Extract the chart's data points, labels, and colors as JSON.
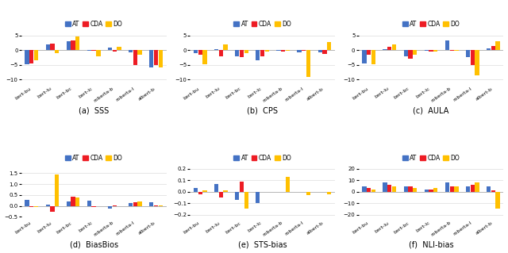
{
  "categories": [
    "bert-bu",
    "bert-lu",
    "bert-bc",
    "bert-lc",
    "roberta-b",
    "roberta-l",
    "albert-b"
  ],
  "colors": {
    "AT": "#4472C4",
    "CDA": "#ED1C24",
    "DO": "#FFC000"
  },
  "methods": [
    "AT",
    "CDA",
    "DO"
  ],
  "SSS": {
    "AT": [
      -4.8,
      2.0,
      3.0,
      -0.2,
      0.9,
      -0.8,
      -5.8
    ],
    "CDA": [
      -4.5,
      2.2,
      3.4,
      -0.1,
      -0.5,
      -5.0,
      -5.0
    ],
    "DO": [
      -3.5,
      -1.0,
      4.5,
      -2.0,
      1.2,
      -1.5,
      -5.8
    ]
  },
  "CPS": {
    "AT": [
      -1.0,
      0.4,
      -2.0,
      -3.5,
      -0.2,
      -0.8,
      -0.8
    ],
    "CDA": [
      -1.5,
      -2.0,
      -2.5,
      -2.0,
      -0.4,
      -0.3,
      -1.2
    ],
    "DO": [
      -4.8,
      1.8,
      -1.0,
      -0.5,
      -0.3,
      -9.0,
      2.8
    ]
  },
  "AULA": {
    "AT": [
      -4.5,
      0.2,
      -2.0,
      -0.3,
      3.2,
      -2.5,
      0.5
    ],
    "CDA": [
      -1.5,
      1.2,
      -3.0,
      -0.5,
      -0.3,
      -5.0,
      1.5
    ],
    "DO": [
      -4.8,
      1.8,
      -1.5,
      -0.5,
      -0.2,
      -8.5,
      3.0
    ]
  },
  "BiasBios": {
    "AT": [
      0.28,
      0.05,
      0.22,
      0.25,
      -0.12,
      0.12,
      0.16
    ],
    "CDA": [
      -0.06,
      -0.28,
      0.42,
      -0.05,
      0.03,
      0.16,
      0.04
    ],
    "DO": [
      -0.05,
      1.45,
      0.38,
      -0.03,
      -0.02,
      0.22,
      0.02
    ]
  },
  "STS-bias": {
    "AT": [
      0.03,
      0.07,
      -0.07,
      -0.1,
      0.0,
      0.0,
      0.0
    ],
    "CDA": [
      -0.02,
      -0.05,
      0.09,
      0.0,
      0.0,
      0.0,
      0.0
    ],
    "DO": [
      0.01,
      0.01,
      -0.15,
      0.0,
      0.13,
      -0.03,
      -0.02
    ]
  },
  "NLI-bias": {
    "AT": [
      5.0,
      8.0,
      5.0,
      2.0,
      8.0,
      5.0,
      5.0
    ],
    "CDA": [
      3.0,
      6.0,
      5.0,
      2.0,
      5.0,
      6.0,
      1.5
    ],
    "DO": [
      2.0,
      5.0,
      3.0,
      3.0,
      5.0,
      8.0,
      -15.0
    ]
  },
  "ylims": {
    "SSS": [
      -11,
      6
    ],
    "CPS": [
      -11,
      6
    ],
    "AULA": [
      -11,
      6
    ],
    "BiasBios": [
      -0.5,
      1.8
    ],
    "STS-bias": [
      -0.22,
      0.22
    ],
    "NLI-bias": [
      -22,
      22
    ]
  },
  "yticks": {
    "SSS": [
      -10,
      -5,
      0,
      5
    ],
    "CPS": [
      -10,
      -5,
      0,
      5
    ],
    "AULA": [
      -10,
      -5,
      0,
      5
    ],
    "BiasBios": [
      -0.5,
      0.0,
      0.5,
      1.0,
      1.5
    ],
    "STS-bias": [
      -0.2,
      -0.1,
      0.0,
      0.1,
      0.2
    ],
    "NLI-bias": [
      -20,
      -10,
      0,
      10,
      20
    ]
  },
  "subtitles": [
    "(a)  SSS",
    "(b)  CPS",
    "(c)  AULA",
    "(d)  BiasBios",
    "(e)  STS-bias",
    "(f)  NLI-bias"
  ]
}
